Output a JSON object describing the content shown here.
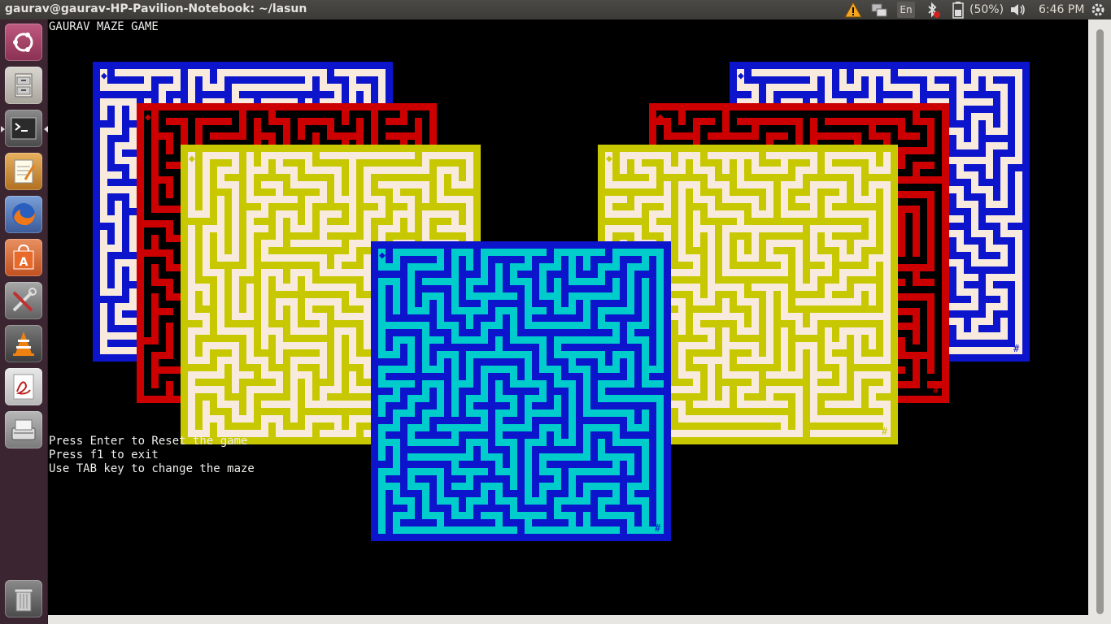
{
  "window": {
    "title": "gaurav@gaurav-HP-Pavilion-Notebook: ~/lasun"
  },
  "indicators": {
    "keyboard": "En",
    "battery": "(50%)",
    "clock": "6:46 PM"
  },
  "launcher": {
    "items": [
      {
        "name": "dash-home",
        "icon": "ubuntu-logo-icon"
      },
      {
        "name": "files",
        "icon": "file-cabinet-icon"
      },
      {
        "name": "terminal",
        "icon": "terminal-icon"
      },
      {
        "name": "text-editor",
        "icon": "notepad-icon"
      },
      {
        "name": "firefox",
        "icon": "firefox-icon"
      },
      {
        "name": "software-center",
        "icon": "shopping-bag-icon"
      },
      {
        "name": "system-settings",
        "icon": "tools-icon"
      },
      {
        "name": "vlc",
        "icon": "traffic-cone-icon"
      },
      {
        "name": "pdf-reader",
        "icon": "pdf-icon"
      },
      {
        "name": "scanner",
        "icon": "scanner-icon"
      },
      {
        "name": "trash",
        "icon": "trash-icon"
      }
    ]
  },
  "terminal": {
    "header": "GAURAV MAZE GAME",
    "instructions": [
      "Press Enter to Reset the game",
      "Press f1 to exit",
      "Use TAB key to change the maze"
    ]
  },
  "mazes": [
    {
      "name": "blue-maze-left",
      "bg": "#f8ebde",
      "wall": "#0c14cc",
      "start": "◆",
      "goal": "#",
      "seed": 11
    },
    {
      "name": "red-maze-left",
      "bg": "#000000",
      "wall": "#cc0000",
      "start": "◆",
      "goal": "#",
      "seed": 23
    },
    {
      "name": "yellow-maze-left",
      "bg": "#f8ebde",
      "wall": "#c8c800",
      "start": "◆",
      "goal": "#",
      "seed": 37
    },
    {
      "name": "blue-maze-right",
      "bg": "#f8ebde",
      "wall": "#0c14cc",
      "start": "◆",
      "goal": "#",
      "seed": 41
    },
    {
      "name": "red-maze-right",
      "bg": "#000000",
      "wall": "#cc0000",
      "start": "◆",
      "goal": "#",
      "seed": 53
    },
    {
      "name": "yellow-maze-right",
      "bg": "#f8ebde",
      "wall": "#c8c800",
      "start": "◆",
      "goal": "#",
      "seed": 67
    },
    {
      "name": "cyan-maze-center",
      "bg": "#00cccc",
      "wall": "#0c14cc",
      "start": "◆",
      "goal": "#",
      "seed": 79
    }
  ]
}
